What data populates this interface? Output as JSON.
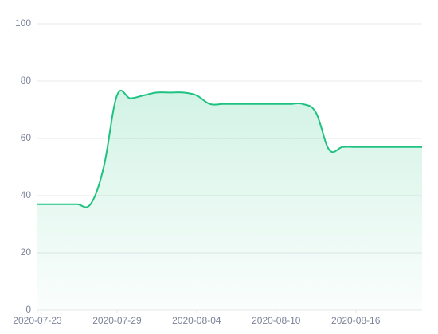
{
  "chart_data": {
    "type": "area",
    "x": [
      "2020-07-23",
      "2020-07-24",
      "2020-07-25",
      "2020-07-26",
      "2020-07-27",
      "2020-07-28",
      "2020-07-29",
      "2020-07-30",
      "2020-07-31",
      "2020-08-01",
      "2020-08-02",
      "2020-08-03",
      "2020-08-04",
      "2020-08-05",
      "2020-08-06",
      "2020-08-07",
      "2020-08-08",
      "2020-08-09",
      "2020-08-10",
      "2020-08-11",
      "2020-08-12",
      "2020-08-13",
      "2020-08-14",
      "2020-08-15",
      "2020-08-16",
      "2020-08-17",
      "2020-08-18",
      "2020-08-19",
      "2020-08-20",
      "2020-08-21"
    ],
    "values": [
      37,
      37,
      37,
      37,
      37,
      50,
      75,
      74,
      75,
      76,
      76,
      76,
      75,
      72,
      72,
      72,
      72,
      72,
      72,
      72,
      72,
      69,
      56,
      57,
      57,
      57,
      57,
      57,
      57,
      57
    ],
    "color": "#1fc281",
    "xlim": [
      "2020-07-23",
      "2020-08-21"
    ],
    "xticks": [
      "2020-07-23",
      "2020-07-29",
      "2020-08-04",
      "2020-08-10",
      "2020-08-16"
    ],
    "ylim": [
      0,
      100
    ],
    "yticks": [
      0,
      20,
      40,
      60,
      80,
      100
    ],
    "grid": true
  }
}
